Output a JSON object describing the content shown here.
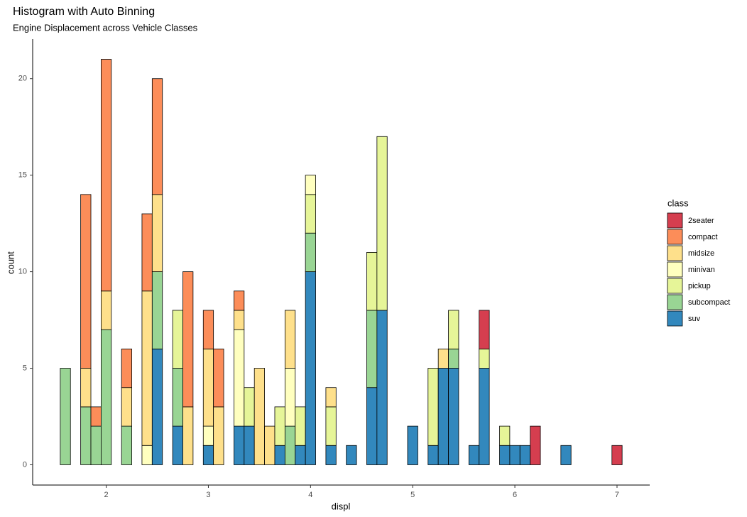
{
  "chart_data": {
    "type": "histogram",
    "title": "Histogram with Auto Binning",
    "subtitle": "Engine Displacement across Vehicle Classes",
    "x_label": "displ",
    "y_label": "count",
    "legend_title": "class",
    "legend_position": "right",
    "grid": false,
    "bins": [
      1.55,
      1.65,
      1.75,
      1.85,
      1.95,
      2.05,
      2.15,
      2.25,
      2.35,
      2.45,
      2.55,
      2.65,
      2.75,
      2.85,
      2.95,
      3.05,
      3.15,
      3.25,
      3.35,
      3.45,
      3.55,
      3.65,
      3.75,
      3.85,
      3.95,
      4.05,
      4.15,
      4.25,
      4.35,
      4.45,
      4.55,
      4.65,
      4.75,
      4.85,
      4.95,
      5.05,
      5.15,
      5.25,
      5.35,
      5.45,
      5.55,
      5.65,
      5.75,
      5.85,
      5.95,
      6.05,
      6.15,
      6.25,
      6.35,
      6.45,
      6.55,
      6.65,
      6.75,
      6.85,
      6.95,
      7.05
    ],
    "series": [
      {
        "name": "2seater",
        "color": "#d53e4f",
        "values": [
          0,
          0,
          0,
          0,
          0,
          0,
          0,
          0,
          0,
          0,
          0,
          0,
          0,
          0,
          0,
          0,
          0,
          0,
          0,
          0,
          0,
          0,
          0,
          0,
          0,
          0,
          0,
          0,
          0,
          0,
          0,
          0,
          0,
          0,
          0,
          0,
          0,
          0,
          0,
          0,
          0,
          2,
          0,
          0,
          0,
          0,
          2,
          0,
          0,
          0,
          0,
          0,
          0,
          0,
          1
        ]
      },
      {
        "name": "compact",
        "color": "#fc8d59",
        "values": [
          0,
          0,
          9,
          1,
          12,
          0,
          2,
          0,
          4,
          6,
          0,
          0,
          7,
          0,
          2,
          3,
          0,
          1,
          0,
          0,
          0,
          0,
          0,
          0,
          0,
          0,
          0,
          0,
          0,
          0,
          0,
          0,
          0,
          0,
          0,
          0,
          0,
          0,
          0,
          0,
          0,
          0,
          0,
          0,
          0,
          0,
          0,
          0,
          0,
          0,
          0,
          0,
          0,
          0,
          0
        ]
      },
      {
        "name": "midsize",
        "color": "#fee08b",
        "values": [
          0,
          0,
          2,
          0,
          2,
          0,
          2,
          0,
          8,
          4,
          0,
          0,
          3,
          0,
          4,
          3,
          0,
          1,
          0,
          5,
          2,
          0,
          3,
          0,
          0,
          0,
          1,
          0,
          0,
          0,
          0,
          0,
          0,
          0,
          0,
          0,
          0,
          1,
          0,
          0,
          0,
          0,
          0,
          0,
          0,
          0,
          0,
          0,
          0,
          0,
          0,
          0,
          0,
          0,
          0
        ]
      },
      {
        "name": "minivan",
        "color": "#ffffbf",
        "values": [
          0,
          0,
          0,
          0,
          0,
          0,
          0,
          0,
          1,
          0,
          0,
          0,
          0,
          0,
          1,
          0,
          0,
          5,
          0,
          0,
          0,
          0,
          3,
          0,
          1,
          0,
          0,
          0,
          0,
          0,
          0,
          0,
          0,
          0,
          0,
          0,
          0,
          0,
          0,
          0,
          0,
          0,
          0,
          0,
          0,
          0,
          0,
          0,
          0,
          0,
          0,
          0,
          0,
          0,
          0
        ]
      },
      {
        "name": "pickup",
        "color": "#e6f598",
        "values": [
          0,
          0,
          0,
          0,
          0,
          0,
          0,
          0,
          0,
          0,
          0,
          3,
          0,
          0,
          0,
          0,
          0,
          0,
          2,
          0,
          0,
          2,
          0,
          2,
          2,
          0,
          2,
          0,
          0,
          0,
          3,
          9,
          0,
          0,
          0,
          0,
          4,
          0,
          2,
          0,
          0,
          1,
          0,
          1,
          0,
          0,
          0,
          0,
          0,
          0,
          0,
          0,
          0,
          0,
          0
        ]
      },
      {
        "name": "subcompact",
        "color": "#99d594",
        "values": [
          5,
          0,
          3,
          2,
          7,
          0,
          2,
          0,
          0,
          4,
          0,
          3,
          0,
          0,
          0,
          0,
          0,
          0,
          0,
          0,
          0,
          0,
          2,
          0,
          2,
          0,
          0,
          0,
          0,
          0,
          4,
          0,
          0,
          0,
          0,
          0,
          0,
          0,
          1,
          0,
          0,
          0,
          0,
          0,
          0,
          0,
          0,
          0,
          0,
          0,
          0,
          0,
          0,
          0,
          0
        ]
      },
      {
        "name": "suv",
        "color": "#3288bd",
        "values": [
          0,
          0,
          0,
          0,
          0,
          0,
          0,
          0,
          0,
          6,
          0,
          2,
          0,
          0,
          1,
          0,
          0,
          2,
          2,
          0,
          0,
          1,
          0,
          1,
          10,
          0,
          1,
          0,
          1,
          0,
          4,
          8,
          0,
          0,
          2,
          0,
          1,
          5,
          5,
          0,
          1,
          5,
          0,
          1,
          1,
          1,
          0,
          0,
          0,
          1,
          0,
          0,
          0,
          0,
          0
        ]
      }
    ],
    "xlim": [
      1.28,
      7.32
    ],
    "xticks": [
      2,
      3,
      4,
      5,
      6,
      7
    ],
    "ylim": [
      -1.05,
      22.05
    ],
    "yticks": [
      0,
      5,
      10,
      15,
      20
    ]
  }
}
